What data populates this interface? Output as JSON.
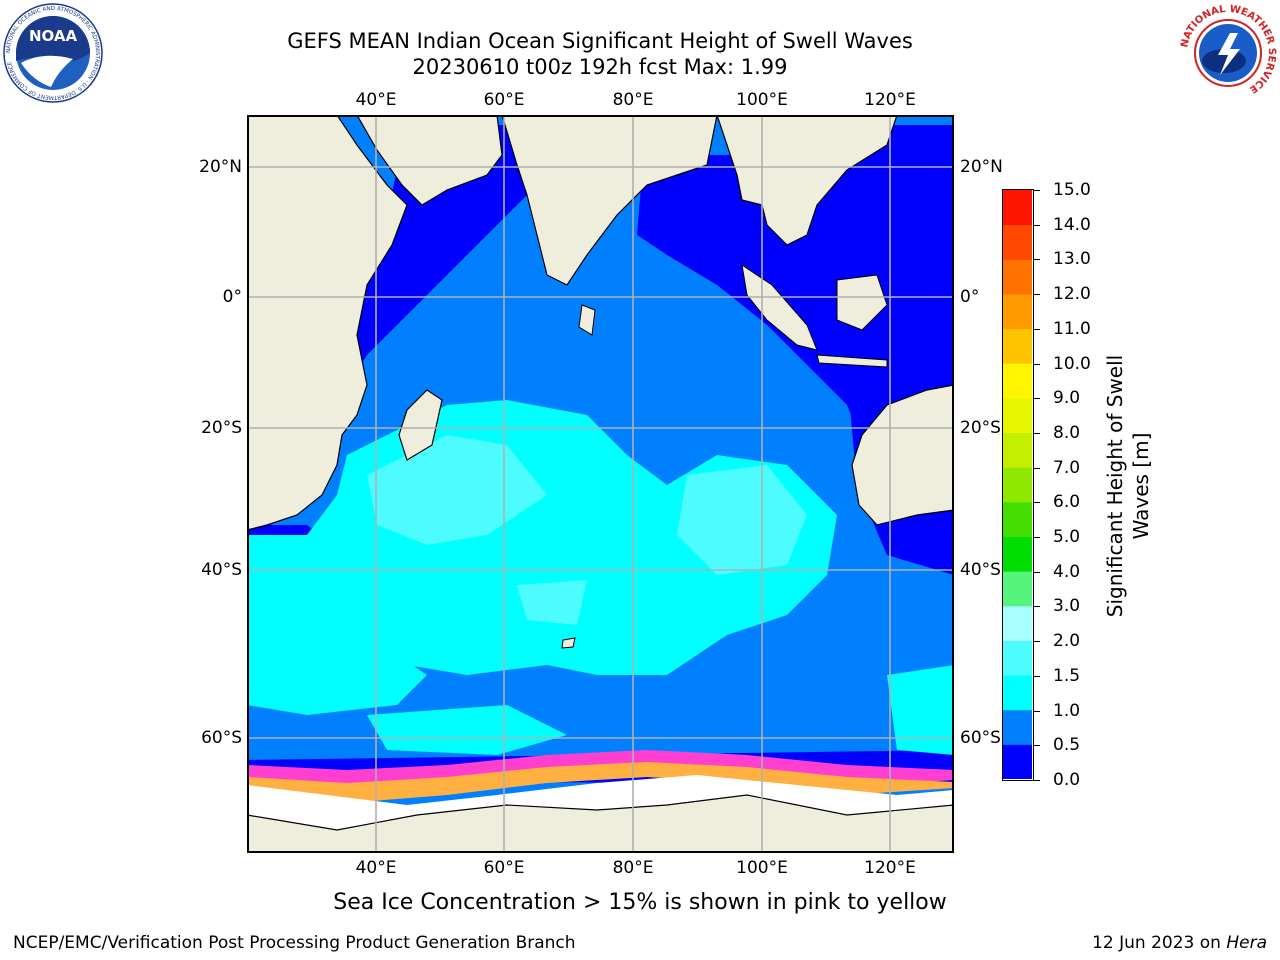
{
  "title": {
    "line1": "GEFS MEAN Indian Ocean Significant Height of Swell Waves",
    "line2": "20230610 t00z 192h fcst   Max: 1.99"
  },
  "map": {
    "lon_ticks": [
      "40°E",
      "60°E",
      "80°E",
      "100°E",
      "120°E"
    ],
    "lat_ticks_left": [
      "20°N",
      "0°",
      "20°S",
      "40°S",
      "60°S"
    ],
    "lat_ticks_right": [
      "20°N",
      "0°",
      "20°S",
      "40°S",
      "60°S"
    ],
    "extent": {
      "lon": [
        20,
        130
      ],
      "lat": [
        -76,
        28
      ]
    },
    "gridlines": true
  },
  "colorbar": {
    "title_line1": "Significant Height of Swell",
    "title_line2": "Waves [m]",
    "labels": [
      "0.0",
      "0.5",
      "1.0",
      "1.5",
      "2.0",
      "3.0",
      "4.0",
      "5.0",
      "6.0",
      "7.0",
      "8.0",
      "9.0",
      "10.0",
      "11.0",
      "12.0",
      "13.0",
      "14.0",
      "15.0"
    ],
    "colors": [
      "#0000ff",
      "#0080ff",
      "#00ffff",
      "#4dfcff",
      "#a8ffff",
      "#55f57d",
      "#00dd00",
      "#44dd00",
      "#8fe800",
      "#c5ef00",
      "#e8f500",
      "#fff500",
      "#ffc400",
      "#ff9a00",
      "#ff7200",
      "#ff4800",
      "#ff1400"
    ]
  },
  "caption": "Sea Ice Concentration > 15% is shown in pink to yellow",
  "footer": {
    "left": "NCEP/EMC/Verification Post Processing Product Generation Branch",
    "right_prefix": "12 Jun 2023 on ",
    "right_host": "Hera"
  },
  "logos": {
    "left_text": "NOAA",
    "left_ring": "NATIONAL OCEANIC AND ATMOSPHERIC ADMINISTRATION · U.S. DEPARTMENT OF COMMERCE",
    "right_ring": "NATIONAL WEATHER SERVICE"
  }
}
